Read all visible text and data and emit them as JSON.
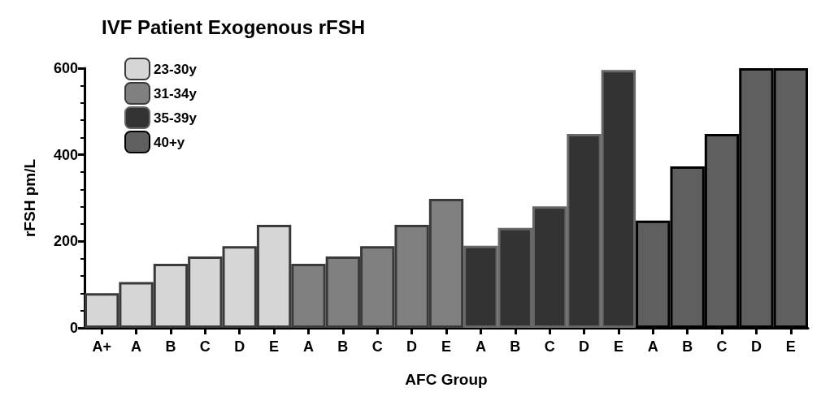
{
  "chart_data": {
    "type": "bar",
    "title": "IVF Patient Exogenous rFSH",
    "xlabel": "AFC Group",
    "ylabel": "rFSH pm/L",
    "categories": [
      "A+",
      "A",
      "B",
      "C",
      "D",
      "E",
      "A",
      "B",
      "C",
      "D",
      "E",
      "A",
      "B",
      "C",
      "D",
      "E",
      "A",
      "B",
      "C",
      "D",
      "E"
    ],
    "series": [
      {
        "name": "23-30y",
        "color": "#d6d6d6",
        "values": [
          80,
          106,
          148,
          165,
          189,
          238,
          null,
          null,
          null,
          null,
          null,
          null,
          null,
          null,
          null,
          null,
          null,
          null,
          null,
          null,
          null
        ]
      },
      {
        "name": "31-34y",
        "color": "#808080",
        "values": [
          null,
          null,
          null,
          null,
          null,
          null,
          148,
          165,
          189,
          238,
          298,
          null,
          null,
          null,
          null,
          null,
          null,
          null,
          null,
          null,
          null
        ]
      },
      {
        "name": "35-39y",
        "color": "#333333",
        "values": [
          null,
          null,
          null,
          null,
          null,
          null,
          null,
          null,
          null,
          null,
          null,
          190,
          231,
          281,
          448,
          596,
          null,
          null,
          null,
          null,
          null
        ]
      },
      {
        "name": "40+y",
        "color": "#5f5f5f",
        "values": [
          null,
          null,
          null,
          null,
          null,
          null,
          null,
          null,
          null,
          null,
          null,
          null,
          null,
          null,
          null,
          null,
          248,
          373,
          448,
          600,
          600
        ]
      }
    ],
    "ylim": [
      0,
      600
    ],
    "yticks": [
      0,
      200,
      400,
      600
    ],
    "legend": "top left",
    "grid": false,
    "stacked": true
  }
}
